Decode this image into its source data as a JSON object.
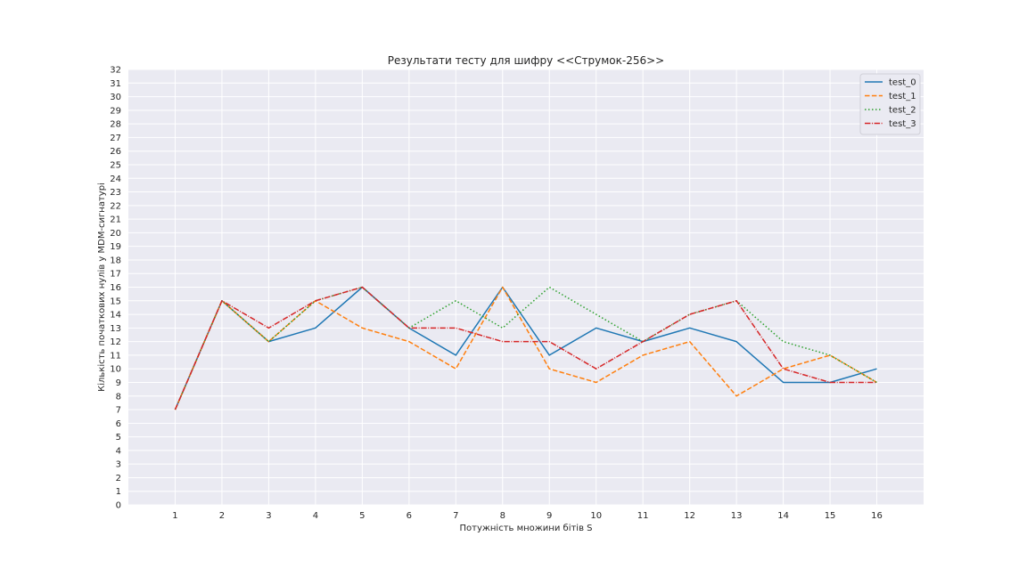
{
  "chart_data": {
    "type": "line",
    "title": "Результати тесту для шифру <<Струмок-256>>",
    "xlabel": "Потужність множини бітів S",
    "ylabel": "Кількість початкових нулів у MDM-сигнатурі",
    "x": [
      1,
      2,
      3,
      4,
      5,
      6,
      7,
      8,
      9,
      10,
      11,
      12,
      13,
      14,
      15,
      16
    ],
    "xlim": [
      0,
      17
    ],
    "ylim": [
      0,
      32
    ],
    "yticks_step": 1,
    "grid": true,
    "legend_position": "top-right",
    "series": [
      {
        "name": "test_0",
        "color": "#1f77b4",
        "dash": "solid",
        "values": [
          7,
          15,
          12,
          13,
          16,
          13,
          11,
          16,
          11,
          13,
          12,
          13,
          12,
          9,
          9,
          10
        ]
      },
      {
        "name": "test_1",
        "color": "#ff7f0e",
        "dash": "dashed",
        "values": [
          7,
          15,
          12,
          15,
          13,
          12,
          10,
          16,
          10,
          9,
          11,
          12,
          8,
          10,
          11,
          9
        ]
      },
      {
        "name": "test_2",
        "color": "#2ca02c",
        "dash": "dotted",
        "values": [
          7,
          15,
          12,
          15,
          16,
          13,
          15,
          13,
          16,
          14,
          12,
          14,
          15,
          12,
          11,
          9
        ]
      },
      {
        "name": "test_3",
        "color": "#d62728",
        "dash": "dashdot",
        "values": [
          7,
          15,
          13,
          15,
          16,
          13,
          13,
          12,
          12,
          10,
          12,
          14,
          15,
          10,
          9,
          9
        ]
      }
    ]
  }
}
